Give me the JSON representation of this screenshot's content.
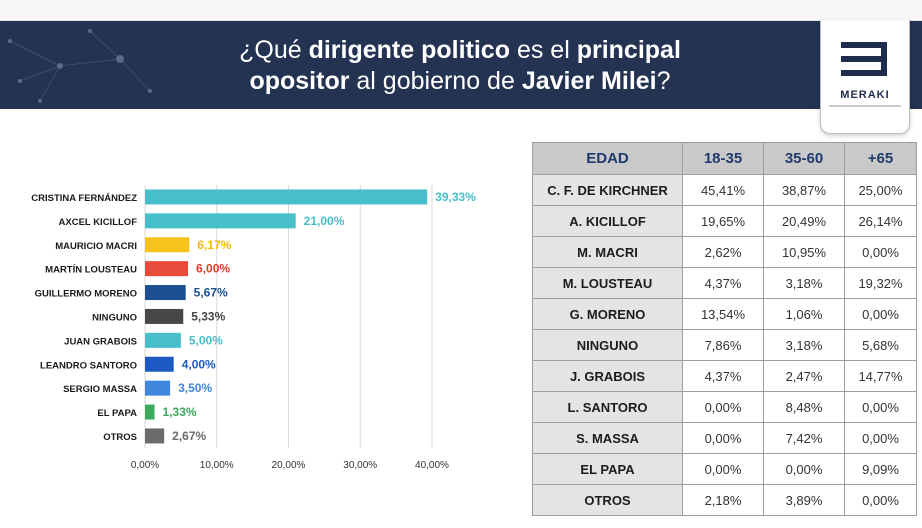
{
  "header": {
    "title_parts": [
      "¿Qué ",
      "dirigente politico",
      " es el ",
      "principal",
      "opositor",
      " al gobierno de ",
      "Javier Milei",
      "?"
    ],
    "logo_text": "MERAKI"
  },
  "chart_data": {
    "type": "bar",
    "orientation": "horizontal",
    "categories": [
      "CRISTINA FERNÁNDEZ",
      "AXCEL KICILLOF",
      "MAURICIO MACRI",
      "MARTÍN LOUSTEAU",
      "GUILLERMO MORENO",
      "NINGUNO",
      "JUAN GRABOIS",
      "LEANDRO SANTORO",
      "SERGIO MASSA",
      "EL PAPA",
      "OTROS"
    ],
    "values": [
      39.33,
      21.0,
      6.17,
      6.0,
      5.67,
      5.33,
      5.0,
      4.0,
      3.5,
      1.33,
      2.67
    ],
    "value_labels": [
      "39,33%",
      "21,00%",
      "6,17%",
      "6,00%",
      "5,67%",
      "5,33%",
      "5,00%",
      "4,00%",
      "3,50%",
      "1,33%",
      "2,67%"
    ],
    "colors": [
      "#47bfca",
      "#47bfca",
      "#f7c21c",
      "#e84a3c",
      "#1b4f8f",
      "#474747",
      "#47bfca",
      "#1c5bc2",
      "#3f86dc",
      "#3ca95c",
      "#6b6b6b"
    ],
    "label_colors": [
      "#47bfca",
      "#47bfca",
      "#f2b90d",
      "#e03c2e",
      "#1b4f8f",
      "#474747",
      "#47bfca",
      "#1c5bc2",
      "#3f86dc",
      "#3ca95c",
      "#6b6b6b"
    ],
    "xlim": [
      0,
      40
    ],
    "xticks": [
      0,
      10,
      20,
      30,
      40
    ],
    "xtick_labels": [
      "0,00%",
      "10,00%",
      "20,00%",
      "30,00%",
      "40,00%"
    ],
    "grid": true
  },
  "table": {
    "headers": [
      "EDAD",
      "18-35",
      "35-60",
      "+65"
    ],
    "rows": [
      {
        "name": "C. F. DE KIRCHNER",
        "v": [
          "45,41%",
          "38,87%",
          "25,00%"
        ]
      },
      {
        "name": "A. KICILLOF",
        "v": [
          "19,65%",
          "20,49%",
          "26,14%"
        ]
      },
      {
        "name": "M. MACRI",
        "v": [
          "2,62%",
          "10,95%",
          "0,00%"
        ]
      },
      {
        "name": "M. LOUSTEAU",
        "v": [
          "4,37%",
          "3,18%",
          "19,32%"
        ]
      },
      {
        "name": "G. MORENO",
        "v": [
          "13,54%",
          "1,06%",
          "0,00%"
        ]
      },
      {
        "name": "NINGUNO",
        "v": [
          "7,86%",
          "3,18%",
          "5,68%"
        ]
      },
      {
        "name": "J. GRABOIS",
        "v": [
          "4,37%",
          "2,47%",
          "14,77%"
        ]
      },
      {
        "name": "L. SANTORO",
        "v": [
          "0,00%",
          "8,48%",
          "0,00%"
        ]
      },
      {
        "name": "S. MASSA",
        "v": [
          "0,00%",
          "7,42%",
          "0,00%"
        ]
      },
      {
        "name": "EL PAPA",
        "v": [
          "0,00%",
          "0,00%",
          "9,09%"
        ]
      },
      {
        "name": "OTROS",
        "v": [
          "2,18%",
          "3,89%",
          "0,00%"
        ]
      }
    ]
  }
}
